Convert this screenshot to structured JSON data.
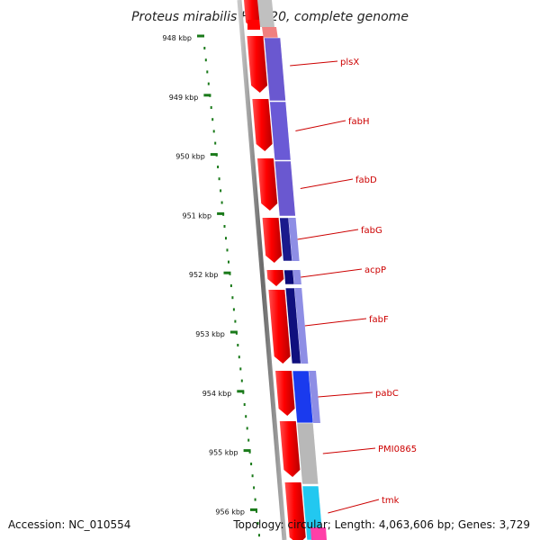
{
  "title": "Proteus mirabilis HI4320, complete genome",
  "accession_text": "Accession: NC_010554",
  "summary_text": "Topology: circular; Length: 4,063,606 bp; Genes: 3,729",
  "colors": {
    "tick": "#1a7a1a",
    "backbone": "#7a7a7a",
    "forward_cds": "#ff0000",
    "gene_label": "#cc0000"
  },
  "ticks": [
    {
      "label": "948 kbp"
    },
    {
      "label": "949 kbp"
    },
    {
      "label": "950 kbp"
    },
    {
      "label": "951 kbp"
    },
    {
      "label": "952 kbp"
    },
    {
      "label": "953 kbp"
    },
    {
      "label": "954 kbp"
    },
    {
      "label": "955 kbp"
    },
    {
      "label": "956 kbp"
    }
  ],
  "genes": [
    {
      "label": "plsX",
      "color": "#6a58d0"
    },
    {
      "label": "fabH",
      "color": "#6a5ad6"
    },
    {
      "label": "fabD",
      "color": "#6a58d0"
    },
    {
      "label": "fabG",
      "color": "#1a1a8c"
    },
    {
      "label": "acpP",
      "color": "#0c0c7a"
    },
    {
      "label": "fabF",
      "color": "#10107e"
    },
    {
      "label": "pabC",
      "color": "#1a3aee"
    },
    {
      "label": "PMI0865",
      "color": "#b8b8b8"
    },
    {
      "label": "tmk",
      "color": "#22c8f0"
    }
  ]
}
